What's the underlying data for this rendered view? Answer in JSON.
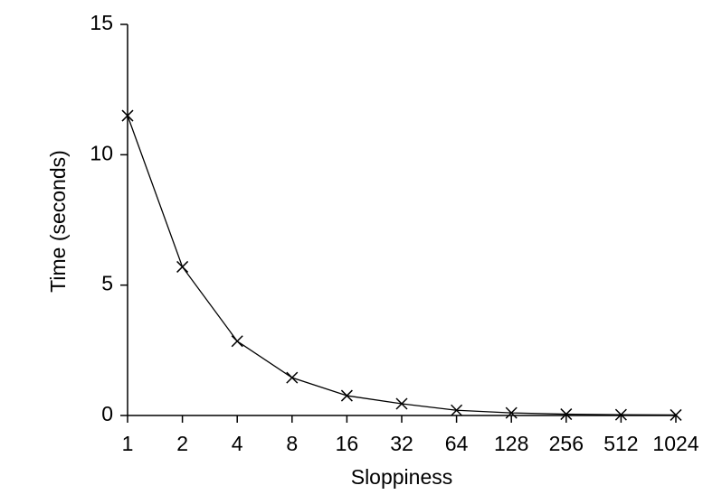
{
  "chart_data": {
    "type": "line",
    "x_label": "Sloppiness",
    "y_label": "Time (seconds)",
    "categories": [
      "1",
      "2",
      "4",
      "8",
      "16",
      "32",
      "64",
      "128",
      "256",
      "512",
      "1024"
    ],
    "series": [
      {
        "name": "Time",
        "color": "#000000",
        "values": [
          11.5,
          5.7,
          2.85,
          1.45,
          0.76,
          0.45,
          0.2,
          0.1,
          0.05,
          0.03,
          0.02
        ]
      }
    ],
    "ylim": [
      0,
      15
    ],
    "yticks": [
      0,
      5,
      10,
      15
    ],
    "marker": "x"
  }
}
